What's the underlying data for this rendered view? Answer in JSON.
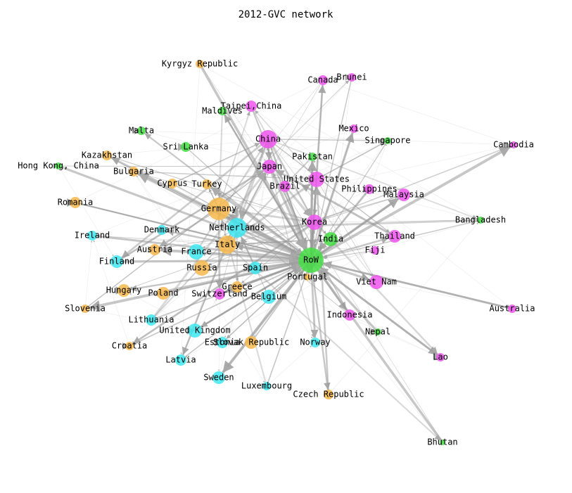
{
  "title": "2012-GVC network",
  "nodes": [
    {
      "label": "RoW",
      "color": "#44dd44"
    },
    {
      "label": "Germany",
      "color": "#f7b84b"
    },
    {
      "label": "Netherlands",
      "color": "#40e8f0"
    },
    {
      "label": "Italy",
      "color": "#f7b84b"
    },
    {
      "label": "China",
      "color": "#ee55ee"
    },
    {
      "label": "United States",
      "color": "#ee55ee"
    },
    {
      "label": "Japan",
      "color": "#ee55ee"
    },
    {
      "label": "Korea",
      "color": "#ee55ee"
    },
    {
      "label": "France",
      "color": "#40e8f0"
    },
    {
      "label": "Russia",
      "color": "#f7b84b"
    },
    {
      "label": "Spain",
      "color": "#40e8f0"
    },
    {
      "label": "Portugal",
      "color": "#f7b84b"
    },
    {
      "label": "Belgium",
      "color": "#40e8f0"
    },
    {
      "label": "Switzerland",
      "color": "#ee55ee"
    },
    {
      "label": "Greece",
      "color": "#f7b84b"
    },
    {
      "label": "India",
      "color": "#44dd44"
    },
    {
      "label": "Brazil",
      "color": "#ee55ee"
    },
    {
      "label": "Pakistan",
      "color": "#44dd44"
    },
    {
      "label": "Taipei,China",
      "color": "#ee55ee"
    },
    {
      "label": "Maldives",
      "color": "#44dd44"
    },
    {
      "label": "Kyrgyz Republic",
      "color": "#f7b84b"
    },
    {
      "label": "Canada",
      "color": "#ee55ee"
    },
    {
      "label": "Brunei",
      "color": "#ee55ee"
    },
    {
      "label": "Mexico",
      "color": "#ee55ee"
    },
    {
      "label": "Singapore",
      "color": "#44dd44"
    },
    {
      "label": "Cambodia",
      "color": "#ee55ee"
    },
    {
      "label": "Philippines",
      "color": "#ee55ee"
    },
    {
      "label": "Malaysia",
      "color": "#ee55ee"
    },
    {
      "label": "Bangladesh",
      "color": "#44dd44"
    },
    {
      "label": "Thailand",
      "color": "#ee55ee"
    },
    {
      "label": "Fiji",
      "color": "#ee55ee"
    },
    {
      "label": "Viet Nam",
      "color": "#ee55ee"
    },
    {
      "label": "Australia",
      "color": "#ee55ee"
    },
    {
      "label": "Indonesia",
      "color": "#ee55ee"
    },
    {
      "label": "Nepal",
      "color": "#44dd44"
    },
    {
      "label": "Lao",
      "color": "#ee55ee"
    },
    {
      "label": "Bhutan",
      "color": "#44dd44"
    },
    {
      "label": "Malta",
      "color": "#44dd44"
    },
    {
      "label": "Sri Lanka",
      "color": "#44dd44"
    },
    {
      "label": "Kazakhstan",
      "color": "#f7b84b"
    },
    {
      "label": "Hong Kong, China",
      "color": "#44dd44"
    },
    {
      "label": "Bulgaria",
      "color": "#f7b84b"
    },
    {
      "label": "Cyprus",
      "color": "#f7b84b"
    },
    {
      "label": "Turkey",
      "color": "#f7b84b"
    },
    {
      "label": "Romania",
      "color": "#f7b84b"
    },
    {
      "label": "Denmark",
      "color": "#40e8f0"
    },
    {
      "label": "Ireland",
      "color": "#40e8f0"
    },
    {
      "label": "Austria",
      "color": "#f7b84b"
    },
    {
      "label": "Finland",
      "color": "#40e8f0"
    },
    {
      "label": "Hungary",
      "color": "#f7b84b"
    },
    {
      "label": "Poland",
      "color": "#f7b84b"
    },
    {
      "label": "Slovenia",
      "color": "#f7b84b"
    },
    {
      "label": "Lithuania",
      "color": "#40e8f0"
    },
    {
      "label": "United Kingdom",
      "color": "#40e8f0"
    },
    {
      "label": "Croatia",
      "color": "#f7b84b"
    },
    {
      "label": "Estonia",
      "color": "#40e8f0"
    },
    {
      "label": "Slovak Republic",
      "color": "#f7b84b"
    },
    {
      "label": "Norway",
      "color": "#40e8f0"
    },
    {
      "label": "Latvia",
      "color": "#40e8f0"
    },
    {
      "label": "Sweden",
      "color": "#40e8f0"
    },
    {
      "label": "Luxembourg",
      "color": "#40e8f0"
    },
    {
      "label": "Czech Republic",
      "color": "#f7b84b"
    }
  ]
}
